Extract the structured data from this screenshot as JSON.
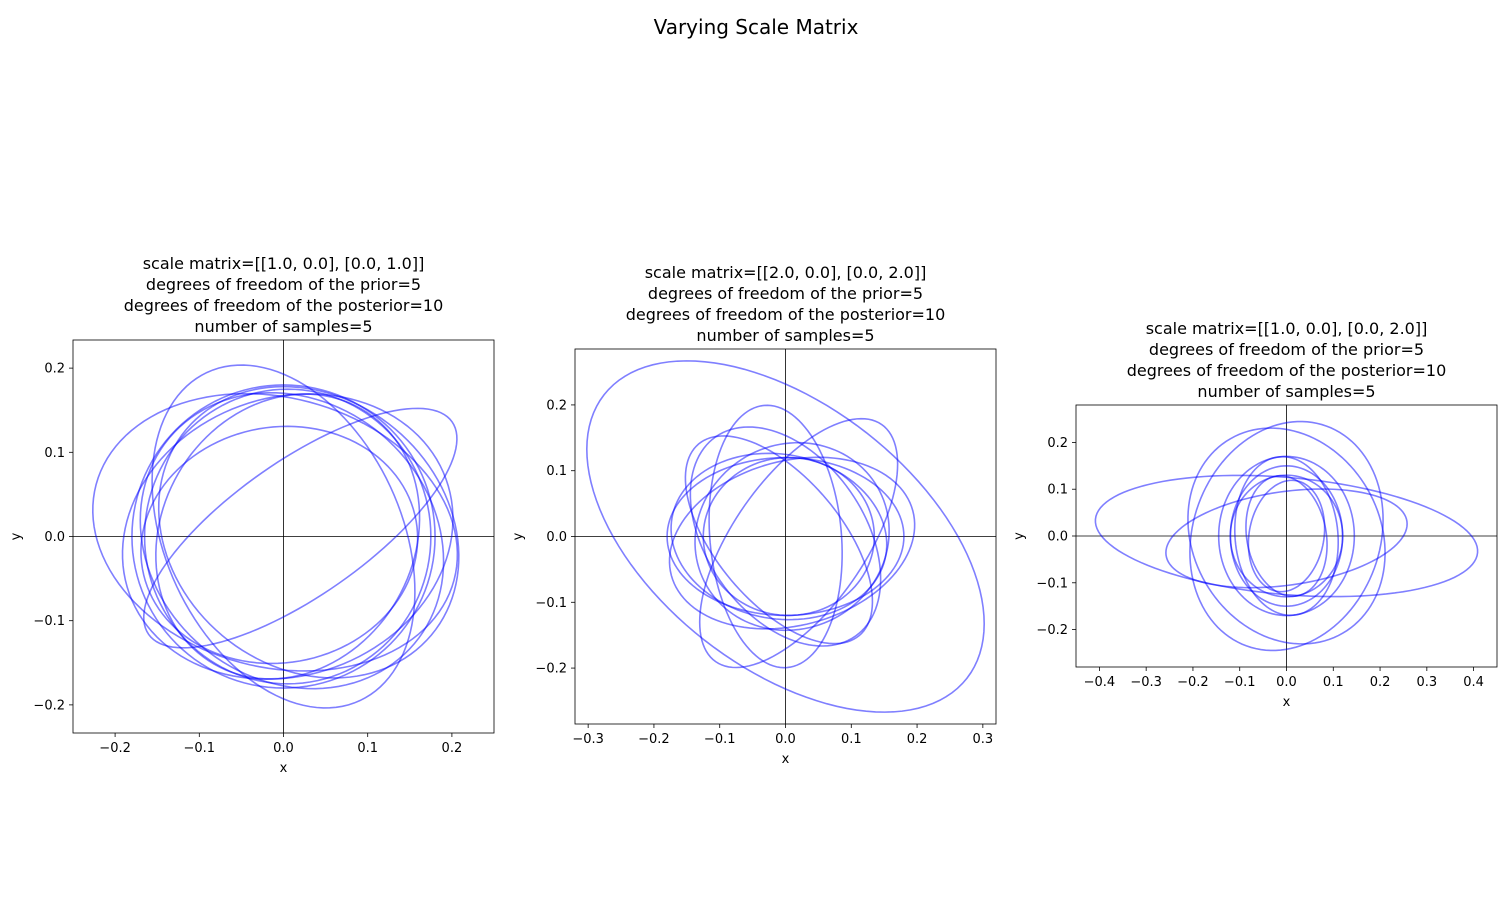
{
  "figure": {
    "suptitle": "Varying Scale Matrix",
    "ellipse_color": "#0000ff",
    "ellipse_alpha": 0.5
  },
  "chart_data": [
    {
      "type": "line",
      "title_lines": [
        "scale matrix=[[1.0, 0.0], [0.0, 1.0]]",
        "degrees of freedom of the prior=5",
        "degrees of freedom of the posterior=10",
        "number of samples=5"
      ],
      "xlabel": "x",
      "ylabel": "y",
      "xlim": [
        -0.25,
        0.25
      ],
      "ylim": [
        -0.2334,
        0.2334
      ],
      "xticks": [
        -0.2,
        -0.1,
        0.0,
        0.1,
        0.2
      ],
      "xtick_labels": [
        "−0.2",
        "−0.1",
        "0.0",
        "0.1",
        "0.2"
      ],
      "yticks": [
        -0.2,
        -0.1,
        0.0,
        0.1,
        0.2
      ],
      "ytick_labels": [
        "−0.2",
        "−0.1",
        "0.0",
        "0.1",
        "0.2"
      ],
      "axis_lines_at_zero": true,
      "ellipses": [
        {
          "cx": 0.0,
          "cy": 0.0,
          "a": 0.18,
          "b": 0.18,
          "angle": 0
        },
        {
          "cx": 0.005,
          "cy": 0.0,
          "a": 0.2,
          "b": 0.165,
          "angle": 20
        },
        {
          "cx": -0.01,
          "cy": 0.005,
          "a": 0.22,
          "b": 0.16,
          "angle": -15
        },
        {
          "cx": 0.005,
          "cy": 0.0,
          "a": 0.175,
          "b": 0.15,
          "angle": 60
        },
        {
          "cx": 0.02,
          "cy": 0.01,
          "a": 0.22,
          "b": 0.08,
          "angle": 35
        },
        {
          "cx": 0.0,
          "cy": 0.0,
          "a": 0.215,
          "b": 0.14,
          "angle": 115
        },
        {
          "cx": 0.005,
          "cy": 0.0,
          "a": 0.175,
          "b": 0.17,
          "angle": 90
        },
        {
          "cx": 0.03,
          "cy": 0.005,
          "a": 0.19,
          "b": 0.16,
          "angle": -40
        },
        {
          "cx": 0.01,
          "cy": -0.005,
          "a": 0.19,
          "b": 0.165,
          "angle": 140
        },
        {
          "cx": -0.005,
          "cy": -0.01,
          "a": 0.165,
          "b": 0.14,
          "angle": 10
        }
      ]
    },
    {
      "type": "line",
      "title_lines": [
        "scale matrix=[[2.0, 0.0], [0.0, 2.0]]",
        "degrees of freedom of the prior=5",
        "degrees of freedom of the posterior=10",
        "number of samples=5"
      ],
      "xlabel": "x",
      "ylabel": "y",
      "xlim": [
        -0.32,
        0.32
      ],
      "ylim": [
        -0.285,
        0.285
      ],
      "xticks": [
        -0.3,
        -0.2,
        -0.1,
        0.0,
        0.1,
        0.2,
        0.3
      ],
      "xtick_labels": [
        "−0.3",
        "−0.2",
        "−0.1",
        "0.0",
        "0.1",
        "0.2",
        "0.3"
      ],
      "yticks": [
        -0.2,
        -0.1,
        0.0,
        0.1,
        0.2
      ],
      "ytick_labels": [
        "−0.2",
        "−0.1",
        "0.0",
        "0.1",
        "0.2"
      ],
      "axis_lines_at_zero": true,
      "ellipses": [
        {
          "cx": 0.0,
          "cy": 0.0,
          "a": 0.35,
          "b": 0.2,
          "angle": -38
        },
        {
          "cx": -0.015,
          "cy": 0.0,
          "a": 0.2,
          "b": 0.1,
          "angle": 95
        },
        {
          "cx": 0.02,
          "cy": -0.01,
          "a": 0.22,
          "b": 0.1,
          "angle": 55
        },
        {
          "cx": 0.0,
          "cy": 0.0,
          "a": 0.18,
          "b": 0.12,
          "angle": 0
        },
        {
          "cx": 0.01,
          "cy": -0.01,
          "a": 0.19,
          "b": 0.125,
          "angle": 15
        },
        {
          "cx": -0.01,
          "cy": 0.0,
          "a": 0.165,
          "b": 0.125,
          "angle": -10
        },
        {
          "cx": 0.0,
          "cy": 0.0,
          "a": 0.185,
          "b": 0.12,
          "angle": 125
        },
        {
          "cx": 0.01,
          "cy": 0.0,
          "a": 0.15,
          "b": 0.14,
          "angle": 30
        },
        {
          "cx": -0.01,
          "cy": -0.005,
          "a": 0.19,
          "b": 0.095,
          "angle": -50
        },
        {
          "cx": 0.005,
          "cy": 0.0,
          "a": 0.13,
          "b": 0.12,
          "angle": 0
        }
      ]
    },
    {
      "type": "line",
      "title_lines": [
        "scale matrix=[[1.0, 0.0], [0.0, 2.0]]",
        "degrees of freedom of the prior=5",
        "degrees of freedom of the posterior=10",
        "number of samples=5"
      ],
      "xlabel": "x",
      "ylabel": "y",
      "xlim": [
        -0.45,
        0.45
      ],
      "ylim": [
        -0.28,
        0.28
      ],
      "xticks": [
        -0.4,
        -0.3,
        -0.2,
        -0.1,
        0.0,
        0.1,
        0.2,
        0.3,
        0.4
      ],
      "xtick_labels": [
        "−0.4",
        "−0.3",
        "−0.2",
        "−0.1",
        "0.0",
        "0.1",
        "0.2",
        "0.3",
        "0.4"
      ],
      "yticks": [
        -0.2,
        -0.1,
        0.0,
        0.1,
        0.2
      ],
      "ytick_labels": [
        "−0.2",
        "−0.1",
        "0.0",
        "0.1",
        "0.2"
      ],
      "axis_lines_at_zero": true,
      "ellipses": [
        {
          "cx": 0.0,
          "cy": 0.0,
          "a": 0.41,
          "b": 0.125,
          "angle": -5
        },
        {
          "cx": 0.0,
          "cy": -0.005,
          "a": 0.26,
          "b": 0.1,
          "angle": 8
        },
        {
          "cx": 0.0,
          "cy": 0.0,
          "a": 0.25,
          "b": 0.2,
          "angle": 70
        },
        {
          "cx": 0.0,
          "cy": 0.0,
          "a": 0.13,
          "b": 0.12,
          "angle": 90
        },
        {
          "cx": 0.0,
          "cy": 0.0,
          "a": 0.145,
          "b": 0.17,
          "angle": 0
        },
        {
          "cx": 0.0,
          "cy": 0.0,
          "a": 0.24,
          "b": 0.2,
          "angle": -60
        },
        {
          "cx": 0.0,
          "cy": 0.0,
          "a": 0.12,
          "b": 0.08,
          "angle": 80
        },
        {
          "cx": 0.0,
          "cy": 0.0,
          "a": 0.13,
          "b": 0.085,
          "angle": 100
        },
        {
          "cx": 0.0,
          "cy": 0.0,
          "a": 0.17,
          "b": 0.11,
          "angle": 95
        },
        {
          "cx": 0.0,
          "cy": 0.0,
          "a": 0.15,
          "b": 0.12,
          "angle": 90
        }
      ]
    }
  ]
}
